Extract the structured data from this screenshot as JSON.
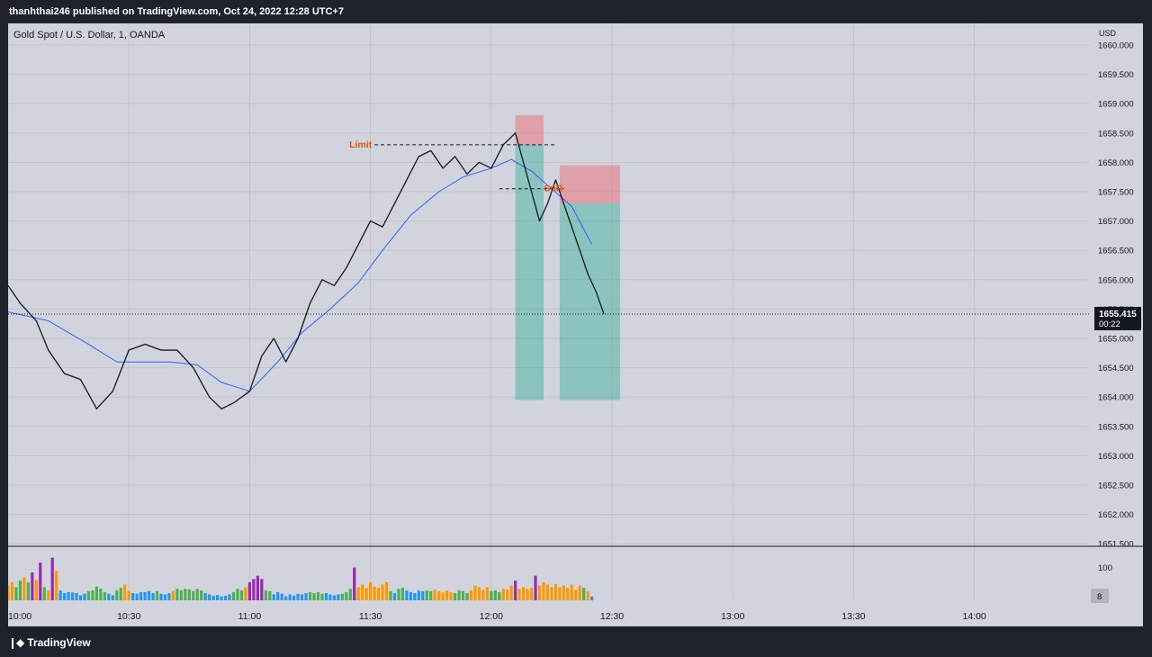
{
  "header": {
    "published": "thanhthai246 published on TradingView.com, Oct 24, 2022 12:28 UTC+7"
  },
  "footer": {
    "brand": "TradingView",
    "logo": "tradingview-logo-icon"
  },
  "chart_data": {
    "type": "candlestick",
    "title": "Gold Spot / U.S. Dollar, 1, OANDA",
    "currency": "USD",
    "x_labels": [
      "10:00",
      "10:30",
      "11:00",
      "11:30",
      "12:00",
      "12:30",
      "13:00",
      "13:30",
      "14:00"
    ],
    "y_ticks": [
      "1660.000",
      "1659.500",
      "1659.000",
      "1658.500",
      "1658.000",
      "1657.500",
      "1657.000",
      "1656.500",
      "1656.000",
      "1655.500",
      "1655.000",
      "1654.500",
      "1654.000",
      "1653.500",
      "1653.000",
      "1652.500",
      "1652.000",
      "1651.500"
    ],
    "ylim": [
      1651.4,
      1660.1
    ],
    "last_price": "1655.415",
    "countdown": "00:22",
    "price_path": [
      {
        "t": "10:00",
        "price": 1655.9
      },
      {
        "t": "10:03",
        "price": 1655.6
      },
      {
        "t": "10:07",
        "price": 1655.3
      },
      {
        "t": "10:10",
        "price": 1654.8
      },
      {
        "t": "10:14",
        "price": 1654.4
      },
      {
        "t": "10:18",
        "price": 1654.3
      },
      {
        "t": "10:22",
        "price": 1653.8
      },
      {
        "t": "10:26",
        "price": 1654.1
      },
      {
        "t": "10:30",
        "price": 1654.8
      },
      {
        "t": "10:34",
        "price": 1654.9
      },
      {
        "t": "10:38",
        "price": 1654.8
      },
      {
        "t": "10:42",
        "price": 1654.8
      },
      {
        "t": "10:46",
        "price": 1654.5
      },
      {
        "t": "10:50",
        "price": 1654.0
      },
      {
        "t": "10:53",
        "price": 1653.8
      },
      {
        "t": "10:56",
        "price": 1653.9
      },
      {
        "t": "11:00",
        "price": 1654.1
      },
      {
        "t": "11:03",
        "price": 1654.7
      },
      {
        "t": "11:06",
        "price": 1655.0
      },
      {
        "t": "11:09",
        "price": 1654.6
      },
      {
        "t": "11:12",
        "price": 1655.0
      },
      {
        "t": "11:15",
        "price": 1655.6
      },
      {
        "t": "11:18",
        "price": 1656.0
      },
      {
        "t": "11:21",
        "price": 1655.9
      },
      {
        "t": "11:24",
        "price": 1656.2
      },
      {
        "t": "11:27",
        "price": 1656.6
      },
      {
        "t": "11:30",
        "price": 1657.0
      },
      {
        "t": "11:33",
        "price": 1656.9
      },
      {
        "t": "11:36",
        "price": 1657.3
      },
      {
        "t": "11:39",
        "price": 1657.7
      },
      {
        "t": "11:42",
        "price": 1658.1
      },
      {
        "t": "11:45",
        "price": 1658.2
      },
      {
        "t": "11:48",
        "price": 1657.9
      },
      {
        "t": "11:51",
        "price": 1658.1
      },
      {
        "t": "11:54",
        "price": 1657.8
      },
      {
        "t": "11:57",
        "price": 1658.0
      },
      {
        "t": "12:00",
        "price": 1657.9
      },
      {
        "t": "12:03",
        "price": 1658.3
      },
      {
        "t": "12:06",
        "price": 1658.5
      },
      {
        "t": "12:08",
        "price": 1658.0
      },
      {
        "t": "12:10",
        "price": 1657.5
      },
      {
        "t": "12:12",
        "price": 1657.0
      },
      {
        "t": "12:14",
        "price": 1657.3
      },
      {
        "t": "12:16",
        "price": 1657.7
      },
      {
        "t": "12:18",
        "price": 1657.3
      },
      {
        "t": "12:20",
        "price": 1656.9
      },
      {
        "t": "12:22",
        "price": 1656.5
      },
      {
        "t": "12:24",
        "price": 1656.1
      },
      {
        "t": "12:26",
        "price": 1655.8
      },
      {
        "t": "12:28",
        "price": 1655.415
      }
    ],
    "moving_average": [
      {
        "t": "10:00",
        "price": 1655.45
      },
      {
        "t": "10:10",
        "price": 1655.3
      },
      {
        "t": "10:20",
        "price": 1654.9
      },
      {
        "t": "10:27",
        "price": 1654.6
      },
      {
        "t": "10:33",
        "price": 1654.6
      },
      {
        "t": "10:40",
        "price": 1654.6
      },
      {
        "t": "10:47",
        "price": 1654.55
      },
      {
        "t": "10:53",
        "price": 1654.25
      },
      {
        "t": "11:00",
        "price": 1654.1
      },
      {
        "t": "11:07",
        "price": 1654.6
      },
      {
        "t": "11:13",
        "price": 1655.1
      },
      {
        "t": "11:20",
        "price": 1655.5
      },
      {
        "t": "11:27",
        "price": 1655.95
      },
      {
        "t": "11:33",
        "price": 1656.5
      },
      {
        "t": "11:40",
        "price": 1657.1
      },
      {
        "t": "11:47",
        "price": 1657.5
      },
      {
        "t": "11:53",
        "price": 1657.75
      },
      {
        "t": "12:00",
        "price": 1657.9
      },
      {
        "t": "12:05",
        "price": 1658.05
      },
      {
        "t": "12:10",
        "price": 1657.85
      },
      {
        "t": "12:15",
        "price": 1657.55
      },
      {
        "t": "12:20",
        "price": 1657.25
      },
      {
        "t": "12:25",
        "price": 1656.6
      }
    ],
    "annotations": [
      {
        "label": "Limit",
        "price": 1658.3,
        "t_start": "11:31",
        "t_end": "12:16",
        "color": "#e65100"
      },
      {
        "label": "SnR",
        "price": 1657.55,
        "t_start": "12:02",
        "t_end": "12:18",
        "color": "#e65100"
      }
    ],
    "positions": [
      {
        "side": "short",
        "t_start": "12:06",
        "t_end": "12:13",
        "entry": 1658.3,
        "stop": 1658.8,
        "target": 1653.95
      },
      {
        "side": "short",
        "t_start": "12:17",
        "t_end": "12:32",
        "entry": 1657.3,
        "stop": 1657.95,
        "target": 1653.95
      }
    ],
    "volume": {
      "y_ticks": [
        "100"
      ],
      "last_value": "8",
      "bars": [
        {
          "t": "10:00",
          "v": 45,
          "c": "#ff9800"
        },
        {
          "t": "10:01",
          "v": 55,
          "c": "#ff9800"
        },
        {
          "t": "10:02",
          "v": 40,
          "c": "#4caf50"
        },
        {
          "t": "10:03",
          "v": 60,
          "c": "#4caf50"
        },
        {
          "t": "10:04",
          "v": 70,
          "c": "#ff9800"
        },
        {
          "t": "10:05",
          "v": 55,
          "c": "#4caf50"
        },
        {
          "t": "10:06",
          "v": 85,
          "c": "#9c27b0"
        },
        {
          "t": "10:07",
          "v": 62,
          "c": "#ff9800"
        },
        {
          "t": "10:08",
          "v": 115,
          "c": "#9c27b0"
        },
        {
          "t": "10:09",
          "v": 40,
          "c": "#4caf50"
        },
        {
          "t": "10:10",
          "v": 30,
          "c": "#ff9800"
        },
        {
          "t": "10:11",
          "v": 130,
          "c": "#9c27b0"
        },
        {
          "t": "10:12",
          "v": 90,
          "c": "#ff9800"
        },
        {
          "t": "10:13",
          "v": 30,
          "c": "#2196f3"
        },
        {
          "t": "10:14",
          "v": 22,
          "c": "#2196f3"
        },
        {
          "t": "10:15",
          "v": 25,
          "c": "#2196f3"
        },
        {
          "t": "10:16",
          "v": 24,
          "c": "#2196f3"
        },
        {
          "t": "10:17",
          "v": 22,
          "c": "#2196f3"
        },
        {
          "t": "10:18",
          "v": 15,
          "c": "#2196f3"
        },
        {
          "t": "10:19",
          "v": 20,
          "c": "#2196f3"
        },
        {
          "t": "10:20",
          "v": 28,
          "c": "#4caf50"
        },
        {
          "t": "10:21",
          "v": 30,
          "c": "#4caf50"
        },
        {
          "t": "10:22",
          "v": 42,
          "c": "#4caf50"
        },
        {
          "t": "10:23",
          "v": 35,
          "c": "#4caf50"
        },
        {
          "t": "10:24",
          "v": 25,
          "c": "#4caf50"
        },
        {
          "t": "10:25",
          "v": 20,
          "c": "#2196f3"
        },
        {
          "t": "10:26",
          "v": 15,
          "c": "#2196f3"
        },
        {
          "t": "10:27",
          "v": 30,
          "c": "#4caf50"
        },
        {
          "t": "10:28",
          "v": 38,
          "c": "#4caf50"
        },
        {
          "t": "10:29",
          "v": 48,
          "c": "#ff9800"
        },
        {
          "t": "10:30",
          "v": 28,
          "c": "#ff9800"
        },
        {
          "t": "10:31",
          "v": 22,
          "c": "#2196f3"
        },
        {
          "t": "10:32",
          "v": 20,
          "c": "#2196f3"
        },
        {
          "t": "10:33",
          "v": 25,
          "c": "#2196f3"
        },
        {
          "t": "10:34",
          "v": 25,
          "c": "#2196f3"
        },
        {
          "t": "10:35",
          "v": 28,
          "c": "#2196f3"
        },
        {
          "t": "10:36",
          "v": 22,
          "c": "#2196f3"
        },
        {
          "t": "10:37",
          "v": 28,
          "c": "#4caf50"
        },
        {
          "t": "10:38",
          "v": 20,
          "c": "#2196f3"
        },
        {
          "t": "10:39",
          "v": 18,
          "c": "#2196f3"
        },
        {
          "t": "10:40",
          "v": 22,
          "c": "#2196f3"
        },
        {
          "t": "10:41",
          "v": 28,
          "c": "#ff9800"
        },
        {
          "t": "10:42",
          "v": 35,
          "c": "#4caf50"
        },
        {
          "t": "10:43",
          "v": 30,
          "c": "#4caf50"
        },
        {
          "t": "10:44",
          "v": 35,
          "c": "#4caf50"
        },
        {
          "t": "10:45",
          "v": 33,
          "c": "#4caf50"
        },
        {
          "t": "10:46",
          "v": 28,
          "c": "#4caf50"
        },
        {
          "t": "10:47",
          "v": 35,
          "c": "#4caf50"
        },
        {
          "t": "10:48",
          "v": 30,
          "c": "#4caf50"
        },
        {
          "t": "10:49",
          "v": 22,
          "c": "#2196f3"
        },
        {
          "t": "10:50",
          "v": 18,
          "c": "#2196f3"
        },
        {
          "t": "10:51",
          "v": 14,
          "c": "#2196f3"
        },
        {
          "t": "10:52",
          "v": 16,
          "c": "#2196f3"
        },
        {
          "t": "10:53",
          "v": 12,
          "c": "#2196f3"
        },
        {
          "t": "10:54",
          "v": 14,
          "c": "#2196f3"
        },
        {
          "t": "10:55",
          "v": 18,
          "c": "#2196f3"
        },
        {
          "t": "10:56",
          "v": 25,
          "c": "#4caf50"
        },
        {
          "t": "10:57",
          "v": 35,
          "c": "#4caf50"
        },
        {
          "t": "10:58",
          "v": 30,
          "c": "#4caf50"
        },
        {
          "t": "10:59",
          "v": 40,
          "c": "#ff9800"
        },
        {
          "t": "11:00",
          "v": 55,
          "c": "#9c27b0"
        },
        {
          "t": "11:01",
          "v": 65,
          "c": "#9c27b0"
        },
        {
          "t": "11:02",
          "v": 75,
          "c": "#9c27b0"
        },
        {
          "t": "11:03",
          "v": 65,
          "c": "#9c27b0"
        },
        {
          "t": "11:04",
          "v": 30,
          "c": "#4caf50"
        },
        {
          "t": "11:05",
          "v": 28,
          "c": "#4caf50"
        },
        {
          "t": "11:06",
          "v": 18,
          "c": "#2196f3"
        },
        {
          "t": "11:07",
          "v": 25,
          "c": "#2196f3"
        },
        {
          "t": "11:08",
          "v": 20,
          "c": "#2196f3"
        },
        {
          "t": "11:09",
          "v": 12,
          "c": "#2196f3"
        },
        {
          "t": "11:10",
          "v": 18,
          "c": "#2196f3"
        },
        {
          "t": "11:11",
          "v": 14,
          "c": "#2196f3"
        },
        {
          "t": "11:12",
          "v": 20,
          "c": "#2196f3"
        },
        {
          "t": "11:13",
          "v": 18,
          "c": "#2196f3"
        },
        {
          "t": "11:14",
          "v": 22,
          "c": "#2196f3"
        },
        {
          "t": "11:15",
          "v": 25,
          "c": "#4caf50"
        },
        {
          "t": "11:16",
          "v": 22,
          "c": "#4caf50"
        },
        {
          "t": "11:17",
          "v": 25,
          "c": "#4caf50"
        },
        {
          "t": "11:18",
          "v": 20,
          "c": "#4caf50"
        },
        {
          "t": "11:19",
          "v": 22,
          "c": "#2196f3"
        },
        {
          "t": "11:20",
          "v": 18,
          "c": "#2196f3"
        },
        {
          "t": "11:21",
          "v": 15,
          "c": "#2196f3"
        },
        {
          "t": "11:22",
          "v": 18,
          "c": "#2196f3"
        },
        {
          "t": "11:23",
          "v": 20,
          "c": "#4caf50"
        },
        {
          "t": "11:24",
          "v": 25,
          "c": "#4caf50"
        },
        {
          "t": "11:25",
          "v": 35,
          "c": "#4caf50"
        },
        {
          "t": "11:26",
          "v": 100,
          "c": "#9c27b0"
        },
        {
          "t": "11:27",
          "v": 40,
          "c": "#ff9800"
        },
        {
          "t": "11:28",
          "v": 48,
          "c": "#ff9800"
        },
        {
          "t": "11:29",
          "v": 38,
          "c": "#ff9800"
        },
        {
          "t": "11:30",
          "v": 55,
          "c": "#ff9800"
        },
        {
          "t": "11:31",
          "v": 42,
          "c": "#ff9800"
        },
        {
          "t": "11:32",
          "v": 38,
          "c": "#ff9800"
        },
        {
          "t": "11:33",
          "v": 48,
          "c": "#ff9800"
        },
        {
          "t": "11:34",
          "v": 55,
          "c": "#ff9800"
        },
        {
          "t": "11:35",
          "v": 28,
          "c": "#4caf50"
        },
        {
          "t": "11:36",
          "v": 22,
          "c": "#2196f3"
        },
        {
          "t": "11:37",
          "v": 35,
          "c": "#4caf50"
        },
        {
          "t": "11:38",
          "v": 38,
          "c": "#4caf50"
        },
        {
          "t": "11:39",
          "v": 30,
          "c": "#2196f3"
        },
        {
          "t": "11:40",
          "v": 25,
          "c": "#2196f3"
        },
        {
          "t": "11:41",
          "v": 22,
          "c": "#2196f3"
        },
        {
          "t": "11:42",
          "v": 30,
          "c": "#2196f3"
        },
        {
          "t": "11:43",
          "v": 28,
          "c": "#2196f3"
        },
        {
          "t": "11:44",
          "v": 30,
          "c": "#4caf50"
        },
        {
          "t": "11:45",
          "v": 28,
          "c": "#4caf50"
        },
        {
          "t": "11:46",
          "v": 32,
          "c": "#ff9800"
        },
        {
          "t": "11:47",
          "v": 28,
          "c": "#ff9800"
        },
        {
          "t": "11:48",
          "v": 24,
          "c": "#ff9800"
        },
        {
          "t": "11:49",
          "v": 30,
          "c": "#ff9800"
        },
        {
          "t": "11:50",
          "v": 24,
          "c": "#ff9800"
        },
        {
          "t": "11:51",
          "v": 22,
          "c": "#4caf50"
        },
        {
          "t": "11:52",
          "v": 30,
          "c": "#4caf50"
        },
        {
          "t": "11:53",
          "v": 28,
          "c": "#4caf50"
        },
        {
          "t": "11:54",
          "v": 22,
          "c": "#4caf50"
        },
        {
          "t": "11:55",
          "v": 30,
          "c": "#ff9800"
        },
        {
          "t": "11:56",
          "v": 45,
          "c": "#ff9800"
        },
        {
          "t": "11:57",
          "v": 40,
          "c": "#ff9800"
        },
        {
          "t": "11:58",
          "v": 32,
          "c": "#ff9800"
        },
        {
          "t": "11:59",
          "v": 40,
          "c": "#ff9800"
        },
        {
          "t": "12:00",
          "v": 28,
          "c": "#4caf50"
        },
        {
          "t": "12:01",
          "v": 30,
          "c": "#4caf50"
        },
        {
          "t": "12:02",
          "v": 25,
          "c": "#4caf50"
        },
        {
          "t": "12:03",
          "v": 35,
          "c": "#ff9800"
        },
        {
          "t": "12:04",
          "v": 32,
          "c": "#ff9800"
        },
        {
          "t": "12:05",
          "v": 45,
          "c": "#ff9800"
        },
        {
          "t": "12:06",
          "v": 60,
          "c": "#9c27b0"
        },
        {
          "t": "12:07",
          "v": 35,
          "c": "#ff9800"
        },
        {
          "t": "12:08",
          "v": 40,
          "c": "#ff9800"
        },
        {
          "t": "12:09",
          "v": 35,
          "c": "#ff9800"
        },
        {
          "t": "12:10",
          "v": 38,
          "c": "#ff9800"
        },
        {
          "t": "12:11",
          "v": 75,
          "c": "#9c27b0"
        },
        {
          "t": "12:12",
          "v": 45,
          "c": "#ff9800"
        },
        {
          "t": "12:13",
          "v": 55,
          "c": "#ff9800"
        },
        {
          "t": "12:14",
          "v": 48,
          "c": "#ff9800"
        },
        {
          "t": "12:15",
          "v": 40,
          "c": "#ff9800"
        },
        {
          "t": "12:16",
          "v": 50,
          "c": "#ff9800"
        },
        {
          "t": "12:17",
          "v": 40,
          "c": "#ff9800"
        },
        {
          "t": "12:18",
          "v": 45,
          "c": "#ff9800"
        },
        {
          "t": "12:19",
          "v": 38,
          "c": "#ff9800"
        },
        {
          "t": "12:20",
          "v": 48,
          "c": "#ff9800"
        },
        {
          "t": "12:21",
          "v": 32,
          "c": "#ff9800"
        },
        {
          "t": "12:22",
          "v": 45,
          "c": "#ff9800"
        },
        {
          "t": "12:23",
          "v": 38,
          "c": "#4caf50"
        },
        {
          "t": "12:24",
          "v": 28,
          "c": "#ff9800"
        },
        {
          "t": "12:25",
          "v": 12,
          "c": "#2196f3"
        }
      ]
    }
  }
}
